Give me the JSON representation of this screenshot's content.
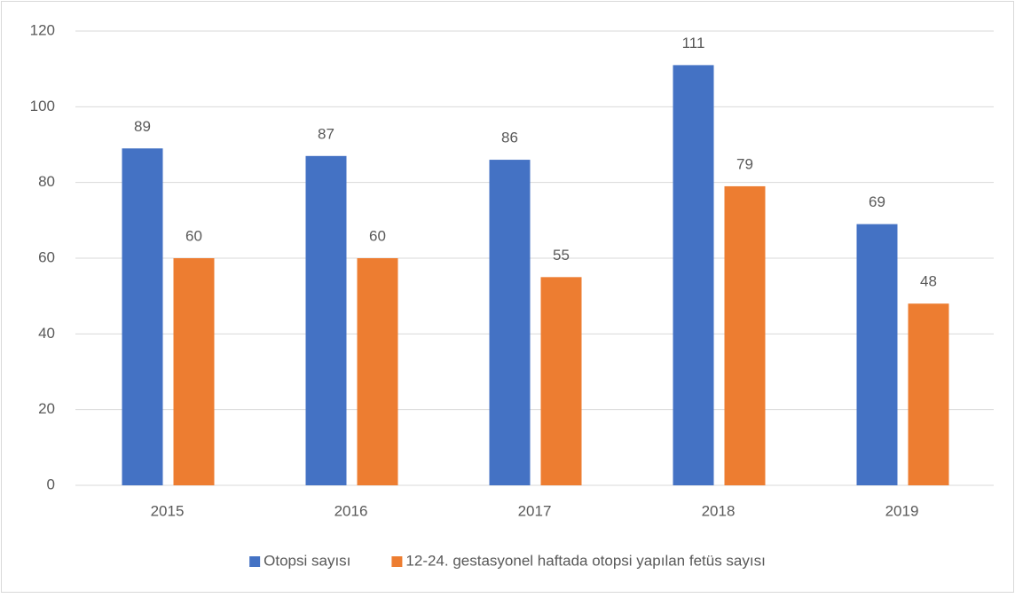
{
  "chart_data": {
    "type": "bar",
    "categories": [
      "2015",
      "2016",
      "2017",
      "2018",
      "2019"
    ],
    "series": [
      {
        "name": "Otopsi sayısı",
        "color": "#4472c4",
        "values": [
          89,
          87,
          86,
          111,
          69
        ]
      },
      {
        "name": "12-24. gestasyonel haftada otopsi yapılan fetüs sayısı",
        "color": "#ed7d31",
        "values": [
          60,
          60,
          55,
          79,
          48
        ]
      }
    ],
    "ylim": [
      0,
      120
    ],
    "yticks": [
      0,
      20,
      40,
      60,
      80,
      100,
      120
    ],
    "grid": true,
    "legend": "bottom"
  }
}
